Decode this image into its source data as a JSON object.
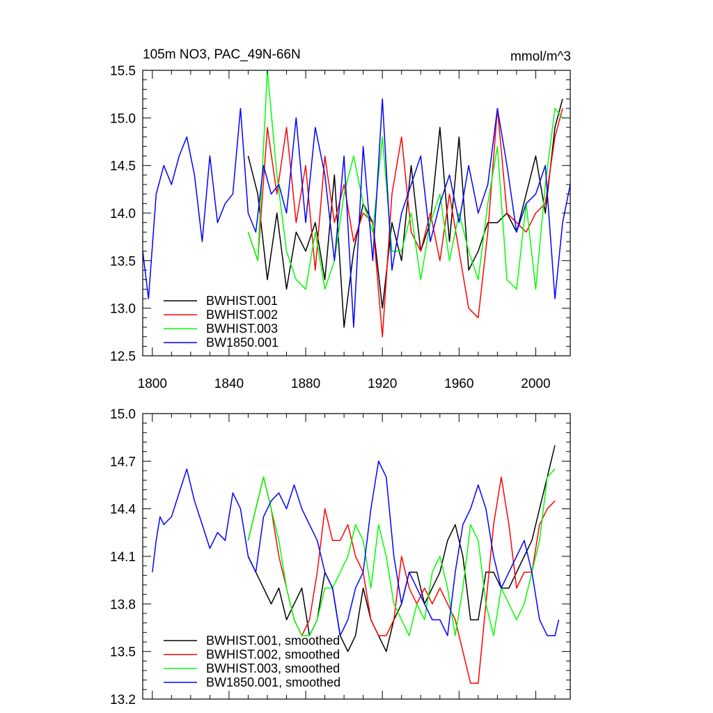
{
  "chart_data": [
    {
      "type": "line",
      "title": "105m NO3, PAC_49N-66N",
      "units": "mmol/m^3",
      "xlim": [
        1795,
        2018
      ],
      "ylim": [
        12.5,
        15.5
      ],
      "xticks": [
        1800,
        1840,
        1880,
        1920,
        1960,
        2000
      ],
      "xtick_labels": [
        "1800",
        "1840",
        "1880",
        "1920",
        "1960",
        "2000"
      ],
      "yticks": [
        12.5,
        13.0,
        13.5,
        14.0,
        14.5,
        15.0,
        15.5
      ],
      "ytick_labels": [
        "12.5",
        "13.0",
        "13.5",
        "14.0",
        "14.5",
        "15.0",
        "15.5"
      ],
      "legend_position": "bottom-left",
      "series": [
        {
          "name": "BWHIST.001",
          "color": "#000000",
          "x": [
            1850,
            1855,
            1860,
            1865,
            1870,
            1875,
            1880,
            1885,
            1890,
            1895,
            1900,
            1905,
            1910,
            1915,
            1920,
            1925,
            1930,
            1935,
            1940,
            1945,
            1950,
            1955,
            1960,
            1965,
            1970,
            1975,
            1980,
            1985,
            1990,
            1995,
            2000,
            2005,
            2010,
            2014
          ],
          "values": [
            14.6,
            14.2,
            13.3,
            14.0,
            13.2,
            13.8,
            13.6,
            13.9,
            13.3,
            14.4,
            12.8,
            13.6,
            14.1,
            13.9,
            13.0,
            13.9,
            13.5,
            14.5,
            13.6,
            13.9,
            14.9,
            13.7,
            14.8,
            13.4,
            13.6,
            13.9,
            13.9,
            14.0,
            13.8,
            14.2,
            14.6,
            14.0,
            14.9,
            15.2
          ]
        },
        {
          "name": "BWHIST.002",
          "color": "#ff0000",
          "x": [
            1850,
            1855,
            1860,
            1865,
            1870,
            1875,
            1880,
            1885,
            1890,
            1895,
            1900,
            1905,
            1910,
            1915,
            1920,
            1925,
            1930,
            1935,
            1940,
            1945,
            1950,
            1955,
            1960,
            1965,
            1970,
            1975,
            1980,
            1985,
            1990,
            1995,
            2000,
            2005,
            2010,
            2014
          ],
          "values": [
            13.8,
            13.5,
            14.9,
            14.2,
            14.9,
            13.9,
            14.5,
            13.4,
            14.6,
            13.9,
            14.3,
            13.7,
            14.0,
            13.9,
            12.7,
            14.2,
            14.8,
            13.8,
            13.6,
            14.0,
            13.5,
            14.2,
            13.6,
            13.0,
            12.9,
            13.8,
            15.1,
            14.0,
            13.9,
            13.8,
            14.0,
            14.1,
            14.8,
            15.1
          ]
        },
        {
          "name": "BWHIST.003",
          "color": "#00ff00",
          "x": [
            1850,
            1855,
            1860,
            1865,
            1870,
            1875,
            1880,
            1885,
            1890,
            1895,
            1900,
            1905,
            1910,
            1915,
            1920,
            1925,
            1930,
            1935,
            1940,
            1945,
            1950,
            1955,
            1960,
            1965,
            1970,
            1975,
            1980,
            1985,
            1990,
            1995,
            2000,
            2005,
            2010,
            2014
          ],
          "values": [
            13.8,
            13.5,
            15.5,
            14.4,
            13.6,
            13.3,
            13.2,
            13.8,
            13.2,
            13.5,
            14.2,
            14.6,
            14.1,
            13.8,
            14.8,
            13.6,
            13.6,
            14.0,
            13.3,
            13.9,
            14.2,
            13.5,
            14.0,
            13.6,
            13.3,
            14.1,
            14.7,
            13.3,
            13.2,
            14.1,
            13.2,
            14.3,
            15.1,
            15.0
          ]
        },
        {
          "name": "BW1850.001",
          "color": "#0000ff",
          "x": [
            1795,
            1798,
            1802,
            1806,
            1810,
            1814,
            1818,
            1822,
            1826,
            1830,
            1834,
            1838,
            1842,
            1846,
            1850,
            1854,
            1858,
            1862,
            1866,
            1870,
            1875,
            1880,
            1885,
            1890,
            1895,
            1900,
            1905,
            1910,
            1915,
            1920,
            1925,
            1930,
            1935,
            1940,
            1945,
            1950,
            1955,
            1960,
            1965,
            1970,
            1975,
            1980,
            1985,
            1990,
            1995,
            2000,
            2005,
            2010,
            2014,
            2018
          ],
          "values": [
            13.6,
            13.1,
            14.2,
            14.5,
            14.3,
            14.6,
            14.8,
            14.4,
            13.7,
            14.6,
            13.9,
            14.1,
            14.2,
            15.1,
            14.0,
            13.8,
            14.5,
            14.2,
            14.3,
            14.0,
            15.0,
            13.9,
            14.9,
            14.4,
            13.5,
            14.6,
            12.8,
            14.7,
            13.5,
            15.2,
            13.4,
            14.0,
            14.3,
            14.6,
            13.7,
            14.1,
            14.4,
            13.9,
            14.5,
            14.0,
            14.3,
            15.1,
            14.5,
            13.8,
            14.1,
            14.2,
            14.5,
            13.1,
            13.9,
            14.3
          ]
        }
      ]
    },
    {
      "type": "line",
      "title": "",
      "xlim": [
        1795,
        2018
      ],
      "ylim": [
        13.2,
        15.0
      ],
      "xticks": [
        1800,
        1840,
        1880,
        1920,
        1960,
        2000
      ],
      "yticks": [
        13.2,
        13.5,
        13.8,
        14.1,
        14.4,
        14.7,
        15.0
      ],
      "ytick_labels": [
        "13.2",
        "13.5",
        "13.8",
        "14.1",
        "14.4",
        "14.7",
        "15.0"
      ],
      "legend_position": "bottom-left",
      "series": [
        {
          "name": "BWHIST.001, smoothed",
          "color": "#000000",
          "x": [
            1850,
            1854,
            1858,
            1862,
            1866,
            1870,
            1874,
            1878,
            1882,
            1886,
            1890,
            1894,
            1898,
            1902,
            1906,
            1910,
            1914,
            1918,
            1922,
            1926,
            1930,
            1934,
            1938,
            1942,
            1946,
            1950,
            1954,
            1958,
            1962,
            1966,
            1970,
            1974,
            1978,
            1982,
            1986,
            1990,
            1994,
            1998,
            2002,
            2006,
            2010
          ],
          "values": [
            14.1,
            14.0,
            13.9,
            13.8,
            13.9,
            13.7,
            13.8,
            13.9,
            13.6,
            13.7,
            14.0,
            13.9,
            13.6,
            13.5,
            13.6,
            13.9,
            13.7,
            13.6,
            13.5,
            13.7,
            13.8,
            14.0,
            14.0,
            13.8,
            13.9,
            14.0,
            14.2,
            14.3,
            14.1,
            13.7,
            13.7,
            14.0,
            14.0,
            13.9,
            13.9,
            14.0,
            14.1,
            14.2,
            14.4,
            14.6,
            14.8
          ]
        },
        {
          "name": "BWHIST.002, smoothed",
          "color": "#ff0000",
          "x": [
            1850,
            1854,
            1858,
            1862,
            1866,
            1870,
            1874,
            1878,
            1882,
            1886,
            1890,
            1894,
            1898,
            1902,
            1906,
            1910,
            1914,
            1918,
            1922,
            1926,
            1930,
            1934,
            1938,
            1942,
            1946,
            1950,
            1954,
            1958,
            1962,
            1966,
            1970,
            1974,
            1978,
            1982,
            1986,
            1990,
            1994,
            1998,
            2002,
            2006,
            2010
          ],
          "values": [
            14.2,
            14.4,
            14.6,
            14.4,
            14.1,
            13.9,
            13.7,
            13.6,
            13.7,
            14.0,
            14.4,
            14.2,
            14.2,
            14.3,
            14.1,
            14.0,
            13.7,
            13.6,
            13.6,
            13.7,
            14.1,
            13.9,
            13.8,
            13.9,
            13.8,
            13.9,
            13.8,
            13.7,
            13.5,
            13.3,
            13.3,
            13.8,
            14.3,
            14.6,
            14.3,
            13.9,
            14.0,
            14.0,
            14.3,
            14.4,
            14.45
          ]
        },
        {
          "name": "BWHIST.003, smoothed",
          "color": "#00ff00",
          "x": [
            1850,
            1854,
            1858,
            1862,
            1866,
            1870,
            1874,
            1878,
            1882,
            1886,
            1890,
            1894,
            1898,
            1902,
            1906,
            1910,
            1914,
            1918,
            1922,
            1926,
            1930,
            1934,
            1938,
            1942,
            1946,
            1950,
            1954,
            1958,
            1962,
            1966,
            1970,
            1974,
            1978,
            1982,
            1986,
            1990,
            1994,
            1998,
            2002,
            2006,
            2010
          ],
          "values": [
            14.2,
            14.4,
            14.6,
            14.4,
            14.2,
            13.9,
            13.7,
            13.6,
            13.6,
            13.7,
            13.9,
            13.9,
            14.0,
            14.1,
            14.3,
            14.2,
            13.9,
            14.3,
            14.1,
            13.8,
            13.7,
            13.6,
            13.8,
            13.7,
            14.0,
            14.1,
            13.9,
            13.6,
            13.9,
            14.3,
            14.2,
            13.8,
            13.6,
            13.9,
            13.8,
            13.7,
            13.8,
            14.0,
            14.2,
            14.6,
            14.65
          ]
        },
        {
          "name": "BW1850.001, smoothed",
          "color": "#0000ff",
          "x": [
            1800,
            1802,
            1804,
            1806,
            1810,
            1814,
            1818,
            1822,
            1826,
            1830,
            1834,
            1838,
            1842,
            1846,
            1850,
            1854,
            1858,
            1862,
            1866,
            1870,
            1874,
            1878,
            1882,
            1886,
            1890,
            1894,
            1898,
            1902,
            1906,
            1910,
            1914,
            1918,
            1922,
            1926,
            1930,
            1934,
            1938,
            1942,
            1946,
            1950,
            1954,
            1958,
            1962,
            1966,
            1970,
            1974,
            1978,
            1982,
            1986,
            1990,
            1994,
            1998,
            2002,
            2006,
            2010,
            2012
          ],
          "values": [
            14.0,
            14.2,
            14.35,
            14.3,
            14.35,
            14.5,
            14.65,
            14.45,
            14.3,
            14.15,
            14.25,
            14.2,
            14.5,
            14.4,
            14.1,
            14.0,
            14.35,
            14.45,
            14.5,
            14.4,
            14.55,
            14.4,
            14.3,
            14.2,
            14.0,
            13.9,
            13.6,
            13.7,
            13.9,
            14.0,
            14.4,
            14.7,
            14.6,
            14.1,
            13.8,
            14.0,
            13.9,
            13.8,
            13.7,
            13.7,
            13.6,
            14.0,
            14.3,
            14.4,
            14.55,
            14.4,
            14.1,
            13.9,
            14.0,
            14.1,
            14.2,
            14.0,
            13.7,
            13.6,
            13.6,
            13.7
          ]
        }
      ]
    }
  ]
}
